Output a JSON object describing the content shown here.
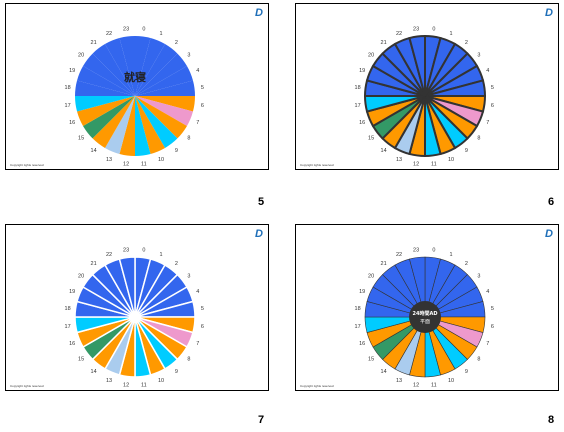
{
  "slides": [
    {
      "number": "5",
      "style": "pie",
      "overlay_text": "就寝"
    },
    {
      "number": "6",
      "style": "pie-thick-outline"
    },
    {
      "number": "7",
      "style": "pie-white-dividers"
    },
    {
      "number": "8",
      "style": "donut",
      "center_text_1": "24時間AD",
      "center_text_2": "平面"
    }
  ],
  "logo_text": "D",
  "footer": {
    "prefix": "Copyright ",
    "highlight": "                    ",
    "suffix": " rights reserved"
  },
  "hour_labels": [
    "0",
    "1",
    "2",
    "3",
    "4",
    "5",
    "6",
    "7",
    "8",
    "9",
    "10",
    "11",
    "12",
    "13",
    "14",
    "15",
    "16",
    "17",
    "18",
    "19",
    "20",
    "21",
    "22",
    "23"
  ],
  "segment_colors": [
    "#3366ee",
    "#3366ee",
    "#3366ee",
    "#3366ee",
    "#3366ee",
    "#3366ee",
    "#ff9900",
    "#ee99cc",
    "#ff9900",
    "#00ccff",
    "#ff9900",
    "#00ccff",
    "#ff9900",
    "#aaccee",
    "#ff9900",
    "#339966",
    "#ff9900",
    "#00ccff",
    "#3366ee",
    "#3366ee",
    "#3366ee",
    "#3366ee",
    "#3366ee",
    "#3366ee"
  ],
  "colors": {
    "blue": "#3366ee",
    "orange": "#ff9900",
    "pink": "#ee99cc",
    "cyan": "#00ccff",
    "lightblue": "#aaccee",
    "green": "#339966"
  }
}
